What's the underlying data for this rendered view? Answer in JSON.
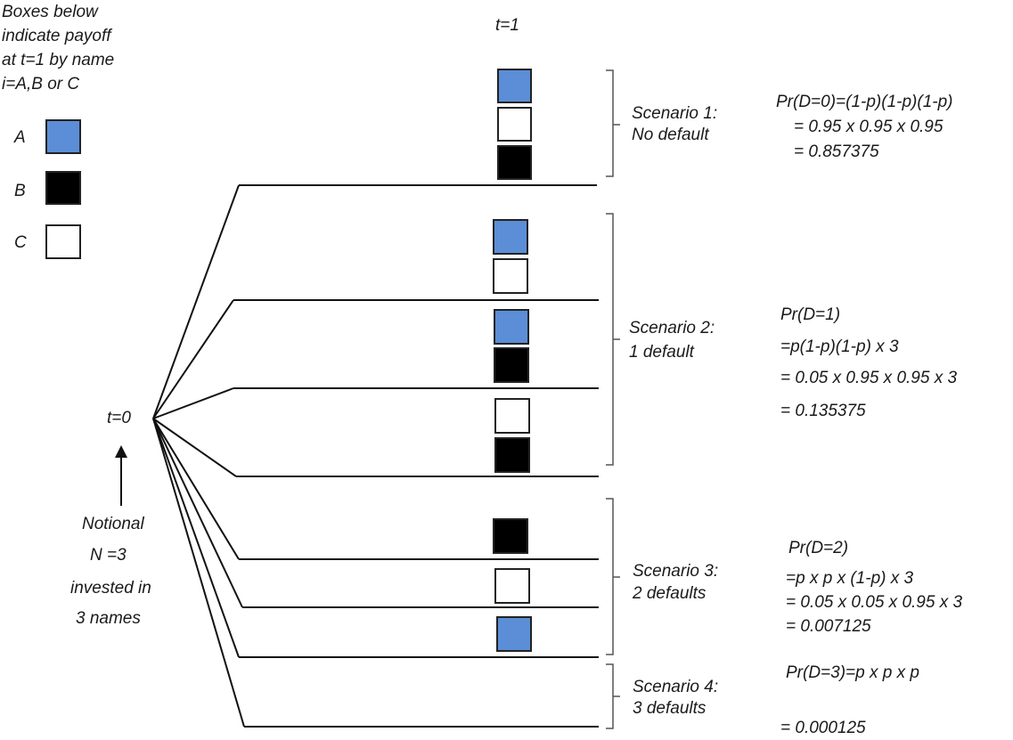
{
  "colors": {
    "A": "#5b8ed6",
    "B": "#000000",
    "C": "#ffffff"
  },
  "legend": {
    "title": [
      "Boxes below",
      "indicate payoff",
      "at t=1 by name",
      "i=A,B or C"
    ],
    "items": [
      {
        "label": "A",
        "color_key": "A"
      },
      {
        "label": "B",
        "color_key": "B"
      },
      {
        "label": "C",
        "color_key": "C"
      }
    ]
  },
  "t0_label": "t=0",
  "t1_label": "t=1",
  "notional": [
    "Notional",
    "N =3",
    "invested in",
    "3  names"
  ],
  "scenarios": [
    {
      "name": "Scenario 1:",
      "desc": "No default",
      "formula": [
        "Pr(D=0)=(1-p)(1-p)(1-p)",
        "= 0.95 x 0.95 x 0.95",
        "= 0.857375"
      ],
      "boxes": [
        "A",
        "C",
        "B"
      ]
    },
    {
      "name": "Scenario 2:",
      "desc": "1 default",
      "formula": [
        "Pr(D=1)",
        "=p(1-p)(1-p) x 3",
        "= 0.05 x 0.95 x 0.95 x 3",
        "= 0.135375"
      ],
      "boxes": [
        "A",
        "C",
        "A",
        "B",
        "C",
        "B"
      ]
    },
    {
      "name": "Scenario 3:",
      "desc": "2 defaults",
      "formula": [
        "Pr(D=2)",
        "=p x p x (1-p) x 3",
        "= 0.05 x 0.05 x 0.95 x 3",
        "= 0.007125"
      ],
      "boxes": [
        "B",
        "C",
        "A"
      ]
    },
    {
      "name": "Scenario 4:",
      "desc": "3 defaults",
      "formula": [
        "Pr(D=3)=p x p x p",
        "= 0.000125"
      ],
      "boxes": []
    }
  ]
}
